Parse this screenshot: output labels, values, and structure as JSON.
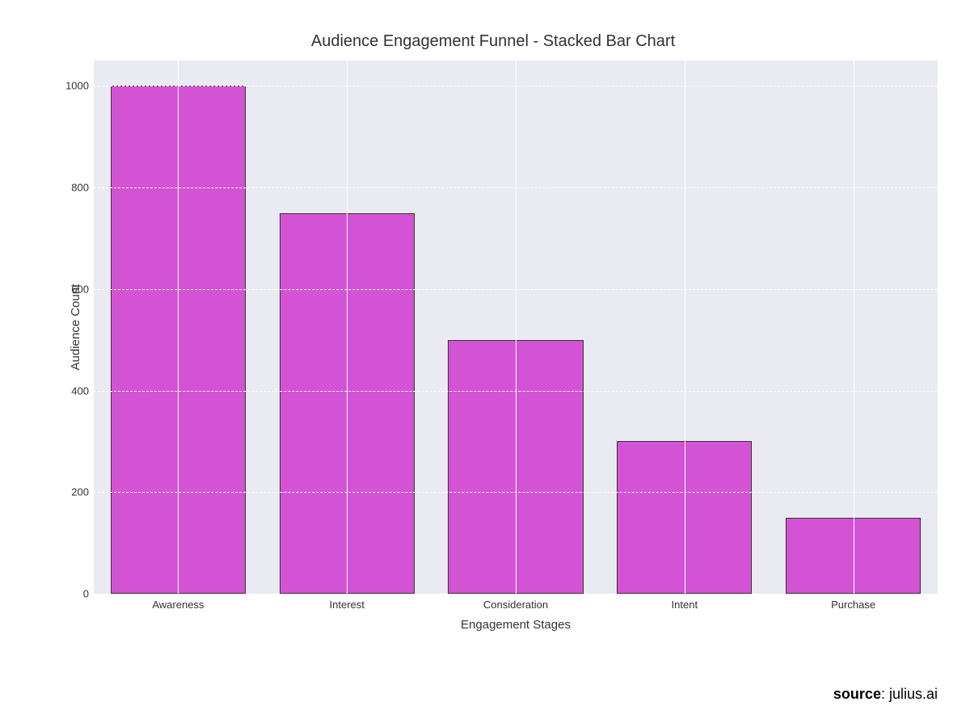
{
  "chart": {
    "type": "bar",
    "title": "Audience Engagement Funnel - Stacked Bar Chart",
    "title_fontsize": 20,
    "xlabel": "Engagement Stages",
    "ylabel": "Audience Count",
    "label_fontsize": 15,
    "tick_fontsize": 13,
    "categories": [
      "Awareness",
      "Interest",
      "Consideration",
      "Intent",
      "Purchase"
    ],
    "values": [
      1000,
      750,
      500,
      300,
      150
    ],
    "bar_color": "#d453d4",
    "bar_edge_color": "#333333",
    "bar_width": 0.8,
    "ylim": [
      0,
      1050
    ],
    "yticks": [
      0,
      200,
      400,
      600,
      800,
      1000
    ],
    "background_color": "#eaeaf2",
    "grid_color": "#ffffff",
    "grid_dash": true,
    "page_background": "#ffffff"
  },
  "source": {
    "label": "source",
    "value": "julius.ai"
  }
}
